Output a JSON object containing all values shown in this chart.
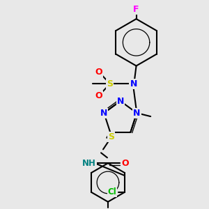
{
  "background_color": "#e8e8e8",
  "figsize": [
    3.0,
    3.0
  ],
  "dpi": 100,
  "colors": {
    "F": "#ff00ff",
    "O": "#ff0000",
    "S": "#cccc00",
    "N": "#0000ff",
    "NH": "#008080",
    "Cl": "#00bb00",
    "C": "#000000",
    "bond": "#000000"
  }
}
